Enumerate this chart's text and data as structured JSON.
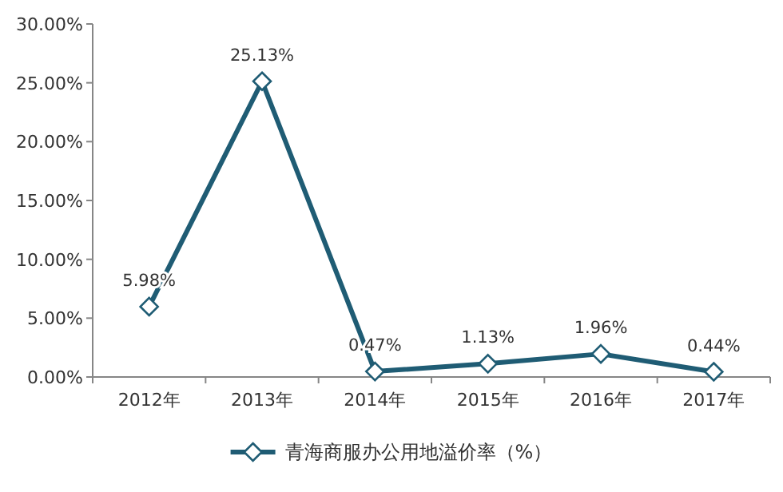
{
  "chart_data": {
    "type": "line",
    "categories": [
      "2012年",
      "2013年",
      "2014年",
      "2015年",
      "2016年",
      "2017年"
    ],
    "series": [
      {
        "name": "青海商服办公用地溢价率（%）",
        "color": "#1f5c74",
        "values": [
          5.98,
          25.13,
          0.47,
          1.13,
          1.96,
          0.44
        ],
        "value_labels": [
          "5.98%",
          "25.13%",
          "0.47%",
          "1.13%",
          "1.96%",
          "0.44%"
        ]
      }
    ],
    "ylim": [
      0,
      30
    ],
    "yticks": [
      {
        "value": 0,
        "label": "0.00%"
      },
      {
        "value": 5,
        "label": "5.00%"
      },
      {
        "value": 10,
        "label": "10.00%"
      },
      {
        "value": 15,
        "label": "15.00%"
      },
      {
        "value": 20,
        "label": "20.00%"
      },
      {
        "value": 25,
        "label": "25.00%"
      },
      {
        "value": 30,
        "label": "30.00%"
      }
    ],
    "marker": "diamond",
    "line_style": "solid",
    "grid": false,
    "legend": "bottom"
  }
}
